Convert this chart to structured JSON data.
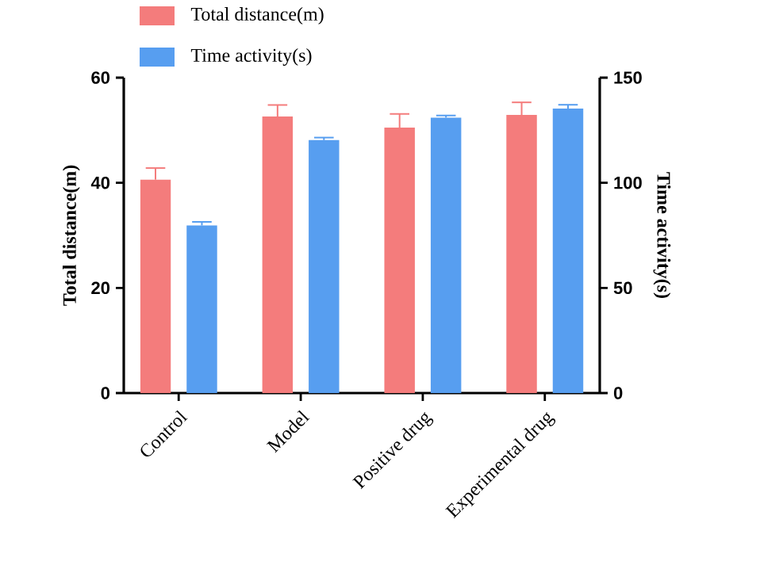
{
  "chart_data": {
    "type": "bar",
    "categories": [
      "Control",
      "Model",
      "Positive drug",
      "Experimental drug"
    ],
    "series": [
      {
        "name": "Total distance(m)",
        "color": "#f47c7c",
        "values": [
          40.6,
          52.6,
          50.5,
          52.9
        ],
        "errors": [
          [
            40.6,
            42.8
          ],
          [
            52.6,
            54.8
          ],
          [
            50.5,
            53.1
          ],
          [
            52.9,
            55.3
          ]
        ]
      },
      {
        "name": "Time activity(s)",
        "color": "#579ef0",
        "axis": "y2",
        "values": [
          79.7,
          120.3,
          131.0,
          135.3
        ],
        "errors": [
          [
            79.7,
            81.4
          ],
          [
            120.3,
            121.5
          ],
          [
            131.0,
            132.0
          ],
          [
            135.3,
            137.1
          ]
        ]
      }
    ],
    "ylabel": "Total distance(m)",
    "y2label": "Time activity(s)",
    "ylim": [
      0,
      60
    ],
    "yticks": [
      0,
      20,
      40,
      60
    ],
    "y2lim": [
      0,
      150
    ],
    "y2ticks": [
      0,
      50,
      100,
      150
    ],
    "legend": "top",
    "grid": false
  }
}
